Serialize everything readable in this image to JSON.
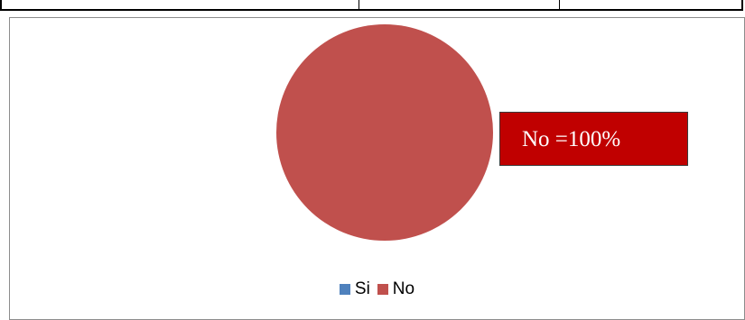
{
  "chart_data": {
    "type": "pie",
    "categories": [
      "Si",
      "No"
    ],
    "values": [
      0,
      100
    ],
    "colors": [
      "#4f81bd",
      "#c0504d"
    ],
    "annotation": "No =100%",
    "annotation_color": "#c00000",
    "legend_position": "bottom"
  }
}
